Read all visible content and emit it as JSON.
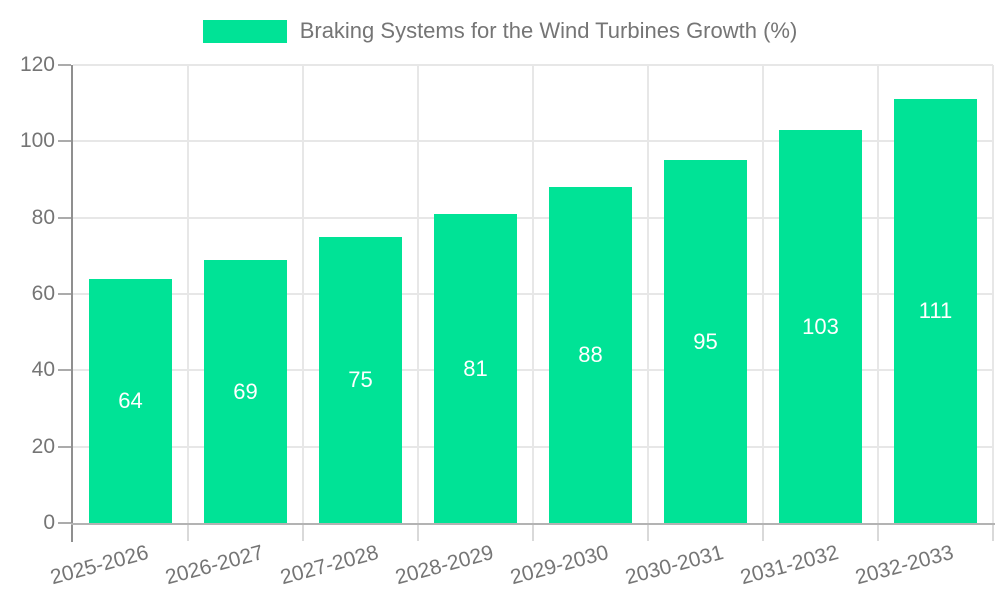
{
  "legend": {
    "label": "Braking Systems for the Wind Turbines Growth (%)"
  },
  "colors": {
    "bar": "#00E396",
    "grid": "#e7e7e7",
    "y_axis_line": "#8f8f8f",
    "x_axis_line": "#b3b3b3",
    "y_tick": "#ababab",
    "x_tick": "#d9d9d9",
    "axis_text": "#757575",
    "data_label_text": "#ffffff",
    "background": "#ffffff"
  },
  "chart_data": {
    "type": "bar",
    "title": "Braking Systems for the Wind Turbines Growth (%)",
    "categories": [
      "2025-2026",
      "2026-2027",
      "2027-2028",
      "2028-2029",
      "2029-2030",
      "2030-2031",
      "2031-2032",
      "2032-2033"
    ],
    "values": [
      64,
      69,
      75,
      81,
      88,
      95,
      103,
      111
    ],
    "xlabel": "",
    "ylabel": "",
    "ylim": [
      0,
      120
    ],
    "yticks": [
      0,
      20,
      40,
      60,
      80,
      100,
      120
    ],
    "grid": true,
    "data_labels": true,
    "legend_position": "top-center"
  }
}
